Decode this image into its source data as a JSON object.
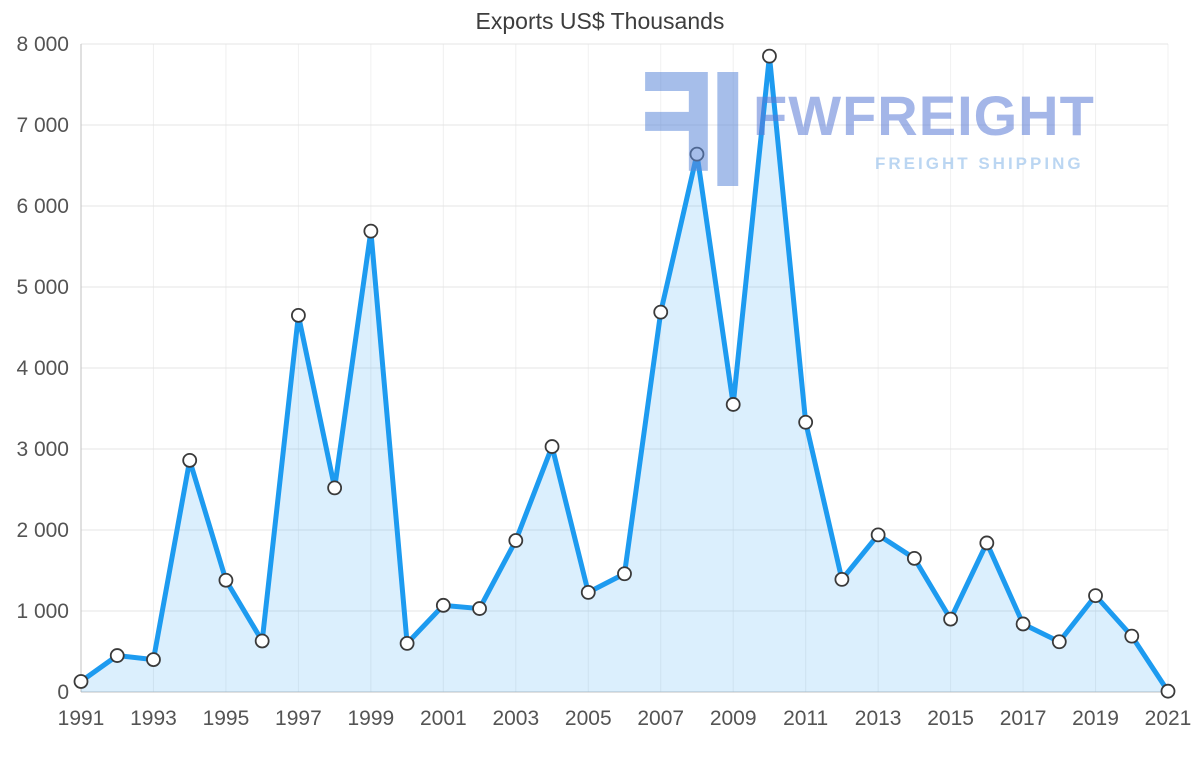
{
  "chart_data": {
    "type": "area",
    "title": "Exports US$ Thousands",
    "xlabel": "",
    "ylabel": "",
    "x": [
      1991,
      1992,
      1993,
      1994,
      1995,
      1996,
      1997,
      1998,
      1999,
      2000,
      2001,
      2002,
      2003,
      2004,
      2005,
      2006,
      2007,
      2008,
      2009,
      2010,
      2011,
      2012,
      2013,
      2014,
      2015,
      2016,
      2017,
      2018,
      2019,
      2020,
      2021
    ],
    "values": [
      130,
      450,
      400,
      2860,
      1380,
      630,
      4650,
      2520,
      5690,
      600,
      1070,
      1030,
      1870,
      3030,
      1230,
      1460,
      4690,
      6640,
      3550,
      7850,
      3330,
      1390,
      1940,
      1650,
      900,
      1840,
      840,
      620,
      1190,
      690,
      10
    ],
    "ylim": [
      0,
      8000
    ],
    "ytick_values": [
      0,
      1000,
      2000,
      3000,
      4000,
      5000,
      6000,
      7000,
      8000
    ],
    "ytick_labels": [
      "0",
      "1 000",
      "2 000",
      "3 000",
      "4 000",
      "5 000",
      "6 000",
      "7 000",
      "8 000"
    ],
    "xtick_values": [
      1991,
      1993,
      1995,
      1997,
      1999,
      2001,
      2003,
      2005,
      2007,
      2009,
      2011,
      2013,
      2015,
      2017,
      2019,
      2021
    ],
    "grid": true,
    "legend_position": "none"
  },
  "colors": {
    "line": "#1d9bf0",
    "area": "rgba(29,155,240,0.16)",
    "marker_fill": "#ffffff",
    "marker_stroke": "#3a3a3a",
    "grid": "#e4e4e4",
    "grid_vertical": "#f0f0f0",
    "axis": "#c2c2c2",
    "tick_text": "#545454",
    "title_text": "#3d3d3d"
  },
  "watermark": {
    "brand": "FWFREIGHT",
    "tagline": "FREIGHT SHIPPING",
    "brand_color": "#5b7cd6",
    "tagline_color": "#85b6e8",
    "logo_color": "#5e8ad9"
  }
}
